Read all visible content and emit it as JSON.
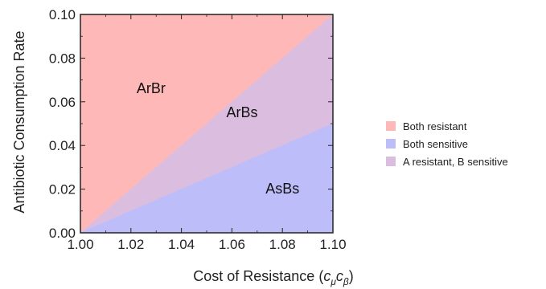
{
  "chart_data": {
    "type": "area",
    "title": "",
    "xlabel_text": "Cost of Resistance (",
    "xlabel_math": "c",
    "xlabel_sub1": "μ",
    "xlabel_math2": "c",
    "xlabel_sub2": "β",
    "xlabel_close": ")",
    "ylabel": "Antibiotic Consumption Rate",
    "xlim": [
      1.0,
      1.1
    ],
    "ylim": [
      0.0,
      0.1
    ],
    "x_ticks": [
      1.0,
      1.02,
      1.04,
      1.06,
      1.08,
      1.1
    ],
    "x_tick_labels": [
      "1.00",
      "1.02",
      "1.04",
      "1.06",
      "1.08",
      "1.10"
    ],
    "y_ticks": [
      0.0,
      0.02,
      0.04,
      0.06,
      0.08,
      0.1
    ],
    "y_tick_labels": [
      "0.00",
      "0.02",
      "0.04",
      "0.06",
      "0.08",
      "0.10"
    ],
    "grid": false,
    "legend_position": "right",
    "regions": [
      {
        "name": "Both resistant",
        "label": "ArBr",
        "color": "#ffb8b8",
        "polygon": [
          [
            1.0,
            0.0
          ],
          [
            1.1,
            0.1
          ],
          [
            1.0,
            0.1
          ]
        ],
        "label_at": [
          1.028,
          0.064
        ]
      },
      {
        "name": "A resistant, B sensitive",
        "label": "ArBs",
        "color": "#dbbde0",
        "polygon": [
          [
            1.0,
            0.0
          ],
          [
            1.1,
            0.05
          ],
          [
            1.1,
            0.1
          ]
        ],
        "label_at": [
          1.064,
          0.053
        ]
      },
      {
        "name": "Both sensitive",
        "label": "AsBs",
        "color": "#bdbdfa",
        "polygon": [
          [
            1.0,
            0.0
          ],
          [
            1.1,
            0.0
          ],
          [
            1.1,
            0.05
          ]
        ],
        "label_at": [
          1.08,
          0.018
        ]
      }
    ],
    "legend": [
      {
        "label": "Both resistant",
        "color": "#ffb8b8"
      },
      {
        "label": "Both sensitive",
        "color": "#bdbdfa"
      },
      {
        "label": "A resistant, B sensitive",
        "color": "#dbbde0"
      }
    ]
  }
}
